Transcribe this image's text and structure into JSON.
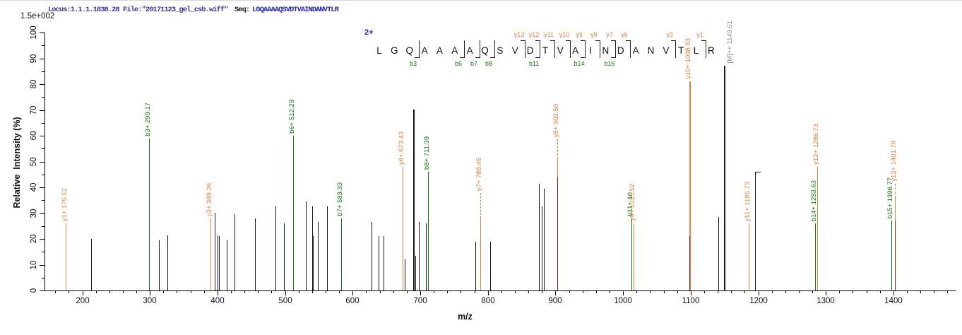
{
  "header": {
    "locus_text": "Locus:1.1.1.1838.28 File:\"20171123_gel_csb.wiff\"",
    "seq_label": "Seq:",
    "sequence": "LGQAAAAQSVDTVAINDANVTLR",
    "y_scale_note": "1.5e+002"
  },
  "colors": {
    "y_ion_orange": "#E0823E",
    "b_ion_green": "#0E7A0E",
    "unassigned_black": "#161616",
    "overlap_maroon": "#7A1F1F",
    "precursor_label_gray": "#8E8E8E",
    "charge_blue": "#2222CC",
    "header_navy": "#3A3AA0",
    "sequence_blue": "#2626C9"
  },
  "chart_data": {
    "type": "bar",
    "subtype": "mass-spectrum",
    "xlabel": "m/z",
    "ylabel": "Relative  Intensity (%)",
    "y_scale_note": "1.5e+002",
    "x_range": [
      144,
      1490
    ],
    "y_range": [
      0,
      100
    ],
    "x_major_ticks": [
      200,
      300,
      400,
      500,
      600,
      700,
      800,
      900,
      1000,
      1100,
      1200,
      1300,
      1400
    ],
    "x_minor_step": 20,
    "y_major_step": 10,
    "y_minor_step": 5,
    "grid": false,
    "charge_state": "2+",
    "peptide_ladder": {
      "residues": [
        "L",
        "G",
        "Q",
        "A",
        "A",
        "A",
        "A",
        "Q",
        "S",
        "V",
        "D",
        "T",
        "V",
        "A",
        "I",
        "N",
        "D",
        "A",
        "N",
        "V",
        "T",
        "L",
        "R"
      ],
      "fragments": [
        {
          "after": 3,
          "b": "b3"
        },
        {
          "after": 6,
          "b": "b6"
        },
        {
          "after": 7,
          "b": "b7"
        },
        {
          "after": 8,
          "b": "b8"
        },
        {
          "after": 10,
          "y": "y13"
        },
        {
          "after": 11,
          "y": "y12",
          "b": "b11"
        },
        {
          "after": 12,
          "y": "y11"
        },
        {
          "after": 13,
          "y": "y10"
        },
        {
          "after": 14,
          "y": "y9",
          "b": "b14"
        },
        {
          "after": 15,
          "y": "y8"
        },
        {
          "after": 16,
          "y": "y7",
          "b": "b16"
        },
        {
          "after": 17,
          "y": "y6"
        },
        {
          "after": 20,
          "y": "y3"
        },
        {
          "after": 22,
          "y": "y1"
        }
      ]
    },
    "peaks": [
      {
        "mz": 175.12,
        "intensity": 26,
        "series": "y",
        "label": "y1+ 175.12"
      },
      {
        "mz": 213,
        "intensity": 20,
        "series": "unassigned"
      },
      {
        "mz": 299.17,
        "intensity": 59,
        "series": "b",
        "label": "b3+ 299.17"
      },
      {
        "mz": 313,
        "intensity": 19.5,
        "series": "unassigned"
      },
      {
        "mz": 326,
        "intensity": 21.5,
        "series": "unassigned"
      },
      {
        "mz": 389.26,
        "intensity": 28,
        "series": "y",
        "label": "y3+ 389.26"
      },
      {
        "mz": 396,
        "intensity": 30,
        "series": "unassigned"
      },
      {
        "mz": 400,
        "intensity": 21.5,
        "series": "unassigned"
      },
      {
        "mz": 402,
        "intensity": 21,
        "series": "unassigned"
      },
      {
        "mz": 414,
        "intensity": 19.5,
        "series": "unassigned"
      },
      {
        "mz": 425,
        "intensity": 29.5,
        "series": "unassigned"
      },
      {
        "mz": 456,
        "intensity": 28,
        "series": "unassigned"
      },
      {
        "mz": 486,
        "intensity": 32.5,
        "series": "unassigned"
      },
      {
        "mz": 498,
        "intensity": 26,
        "series": "unassigned"
      },
      {
        "mz": 512.29,
        "intensity": 60,
        "series": "b",
        "label": "b6+ 512.29"
      },
      {
        "mz": 531,
        "intensity": 34.5,
        "series": "unassigned"
      },
      {
        "mz": 540,
        "intensity": 32.5,
        "series": "unassigned"
      },
      {
        "mz": 541.5,
        "intensity": 21,
        "series": "unassigned"
      },
      {
        "mz": 548,
        "intensity": 26.5,
        "series": "unassigned"
      },
      {
        "mz": 562,
        "intensity": 32.5,
        "series": "unassigned"
      },
      {
        "mz": 583.33,
        "intensity": 28,
        "series": "b",
        "label": "b7+ 583.33"
      },
      {
        "mz": 628,
        "intensity": 26.5,
        "series": "unassigned"
      },
      {
        "mz": 638,
        "intensity": 21,
        "series": "unassigned"
      },
      {
        "mz": 646,
        "intensity": 21,
        "series": "unassigned"
      },
      {
        "mz": 673.43,
        "intensity": 48,
        "series": "y",
        "label": "y6+ 673.43"
      },
      {
        "mz": 676.5,
        "intensity": 12,
        "series": "unassigned"
      },
      {
        "mz": 690,
        "intensity": 70,
        "series": "unassigned"
      },
      {
        "mz": 693,
        "intensity": 13.5,
        "series": "unassigned"
      },
      {
        "mz": 698,
        "intensity": 26.5,
        "series": "unassigned"
      },
      {
        "mz": 708,
        "intensity": 26,
        "series": "unassigned"
      },
      {
        "mz": 711.39,
        "intensity": 46,
        "series": "b",
        "label": "b8+ 711.39"
      },
      {
        "mz": 782,
        "intensity": 19,
        "series": "unassigned"
      },
      {
        "mz": 788.45,
        "intensity": 28,
        "series": "y",
        "label": "y7+ 788.45",
        "leader": 36
      },
      {
        "mz": 803,
        "intensity": 19,
        "series": "unassigned"
      },
      {
        "mz": 876,
        "intensity": 41.5,
        "series": "unassigned"
      },
      {
        "mz": 880,
        "intensity": 32.5,
        "series": "unassigned"
      },
      {
        "mz": 883,
        "intensity": 39.5,
        "series": "unassigned"
      },
      {
        "mz": 902.5,
        "intensity": 51,
        "series": "y",
        "label": "y8+ 902.50",
        "leader": 28
      },
      {
        "mz": 902.5,
        "intensity": 44,
        "series": "overlap"
      },
      {
        "mz": 1012.52,
        "intensity": 28,
        "series": "b",
        "label": "b11+ 10"
      },
      {
        "mz": 1015.52,
        "intensity": 26,
        "series": "y",
        "label": "y9+ 1015.52"
      },
      {
        "mz": 1098.63,
        "intensity": 81,
        "series": "y",
        "label": "y10+ 1098.63"
      },
      {
        "mz": 1098.63,
        "intensity": 21,
        "series": "overlap"
      },
      {
        "mz": 1140.5,
        "intensity": 28.5,
        "series": "unassigned"
      },
      {
        "mz": 1149.61,
        "intensity": 87,
        "series": "precursor",
        "label": "[M]++ 1149.61"
      },
      {
        "mz": 1185.73,
        "intensity": 26,
        "series": "y",
        "label": "y11+ 1185.73"
      },
      {
        "mz": 1195,
        "intensity": 46,
        "series": "unassigned",
        "cap": true
      },
      {
        "mz": 1283.63,
        "intensity": 26,
        "series": "b",
        "label": "b14+ 1283.63"
      },
      {
        "mz": 1286.73,
        "intensity": 48,
        "series": "y",
        "label": "y12+ 1286.73"
      },
      {
        "mz": 1396.77,
        "intensity": 27,
        "series": "b",
        "label": "b15+ 1396.77"
      },
      {
        "mz": 1401.78,
        "intensity": 36,
        "series": "y",
        "label": "y13+ 1401.78",
        "leader": 20
      },
      {
        "mz": 1401.78,
        "intensity": 27,
        "series": "overlap"
      }
    ]
  }
}
